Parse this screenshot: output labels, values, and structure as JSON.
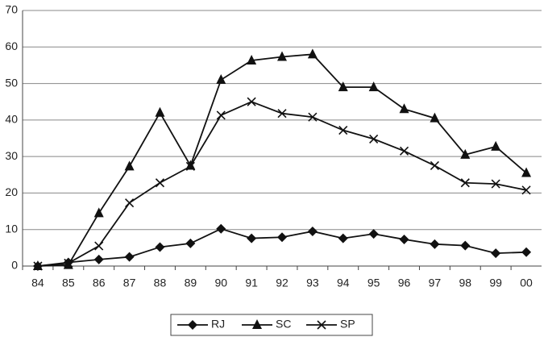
{
  "chart_data": {
    "type": "line",
    "categories": [
      "84",
      "85",
      "86",
      "87",
      "88",
      "89",
      "90",
      "91",
      "92",
      "93",
      "94",
      "95",
      "96",
      "97",
      "98",
      "99",
      "00"
    ],
    "series": [
      {
        "name": "RJ",
        "color": "#111111",
        "marker": "diamond",
        "values": [
          0,
          1,
          1.8,
          2.5,
          5.2,
          6.2,
          10.2,
          7.6,
          7.9,
          9.5,
          7.6,
          8.8,
          7.3,
          6,
          5.6,
          3.5,
          3.8
        ]
      },
      {
        "name": "SC",
        "color": "#111111",
        "marker": "triangle",
        "values": [
          0,
          0.3,
          14.5,
          27.3,
          42,
          27.5,
          51,
          56.3,
          57.3,
          58,
          49,
          49,
          43,
          40.5,
          30.5,
          32.7,
          25.5
        ]
      },
      {
        "name": "SP",
        "color": "#111111",
        "marker": "x",
        "values": [
          0,
          0.8,
          5.5,
          17.3,
          22.8,
          27.3,
          41.3,
          45,
          41.8,
          40.8,
          37.2,
          34.8,
          31.5,
          27.5,
          22.8,
          22.5,
          20.8
        ]
      }
    ],
    "ylim": [
      0,
      70
    ],
    "yticks": [
      0,
      10,
      20,
      30,
      40,
      50,
      60,
      70
    ],
    "grid": true,
    "legend": "bottom"
  }
}
